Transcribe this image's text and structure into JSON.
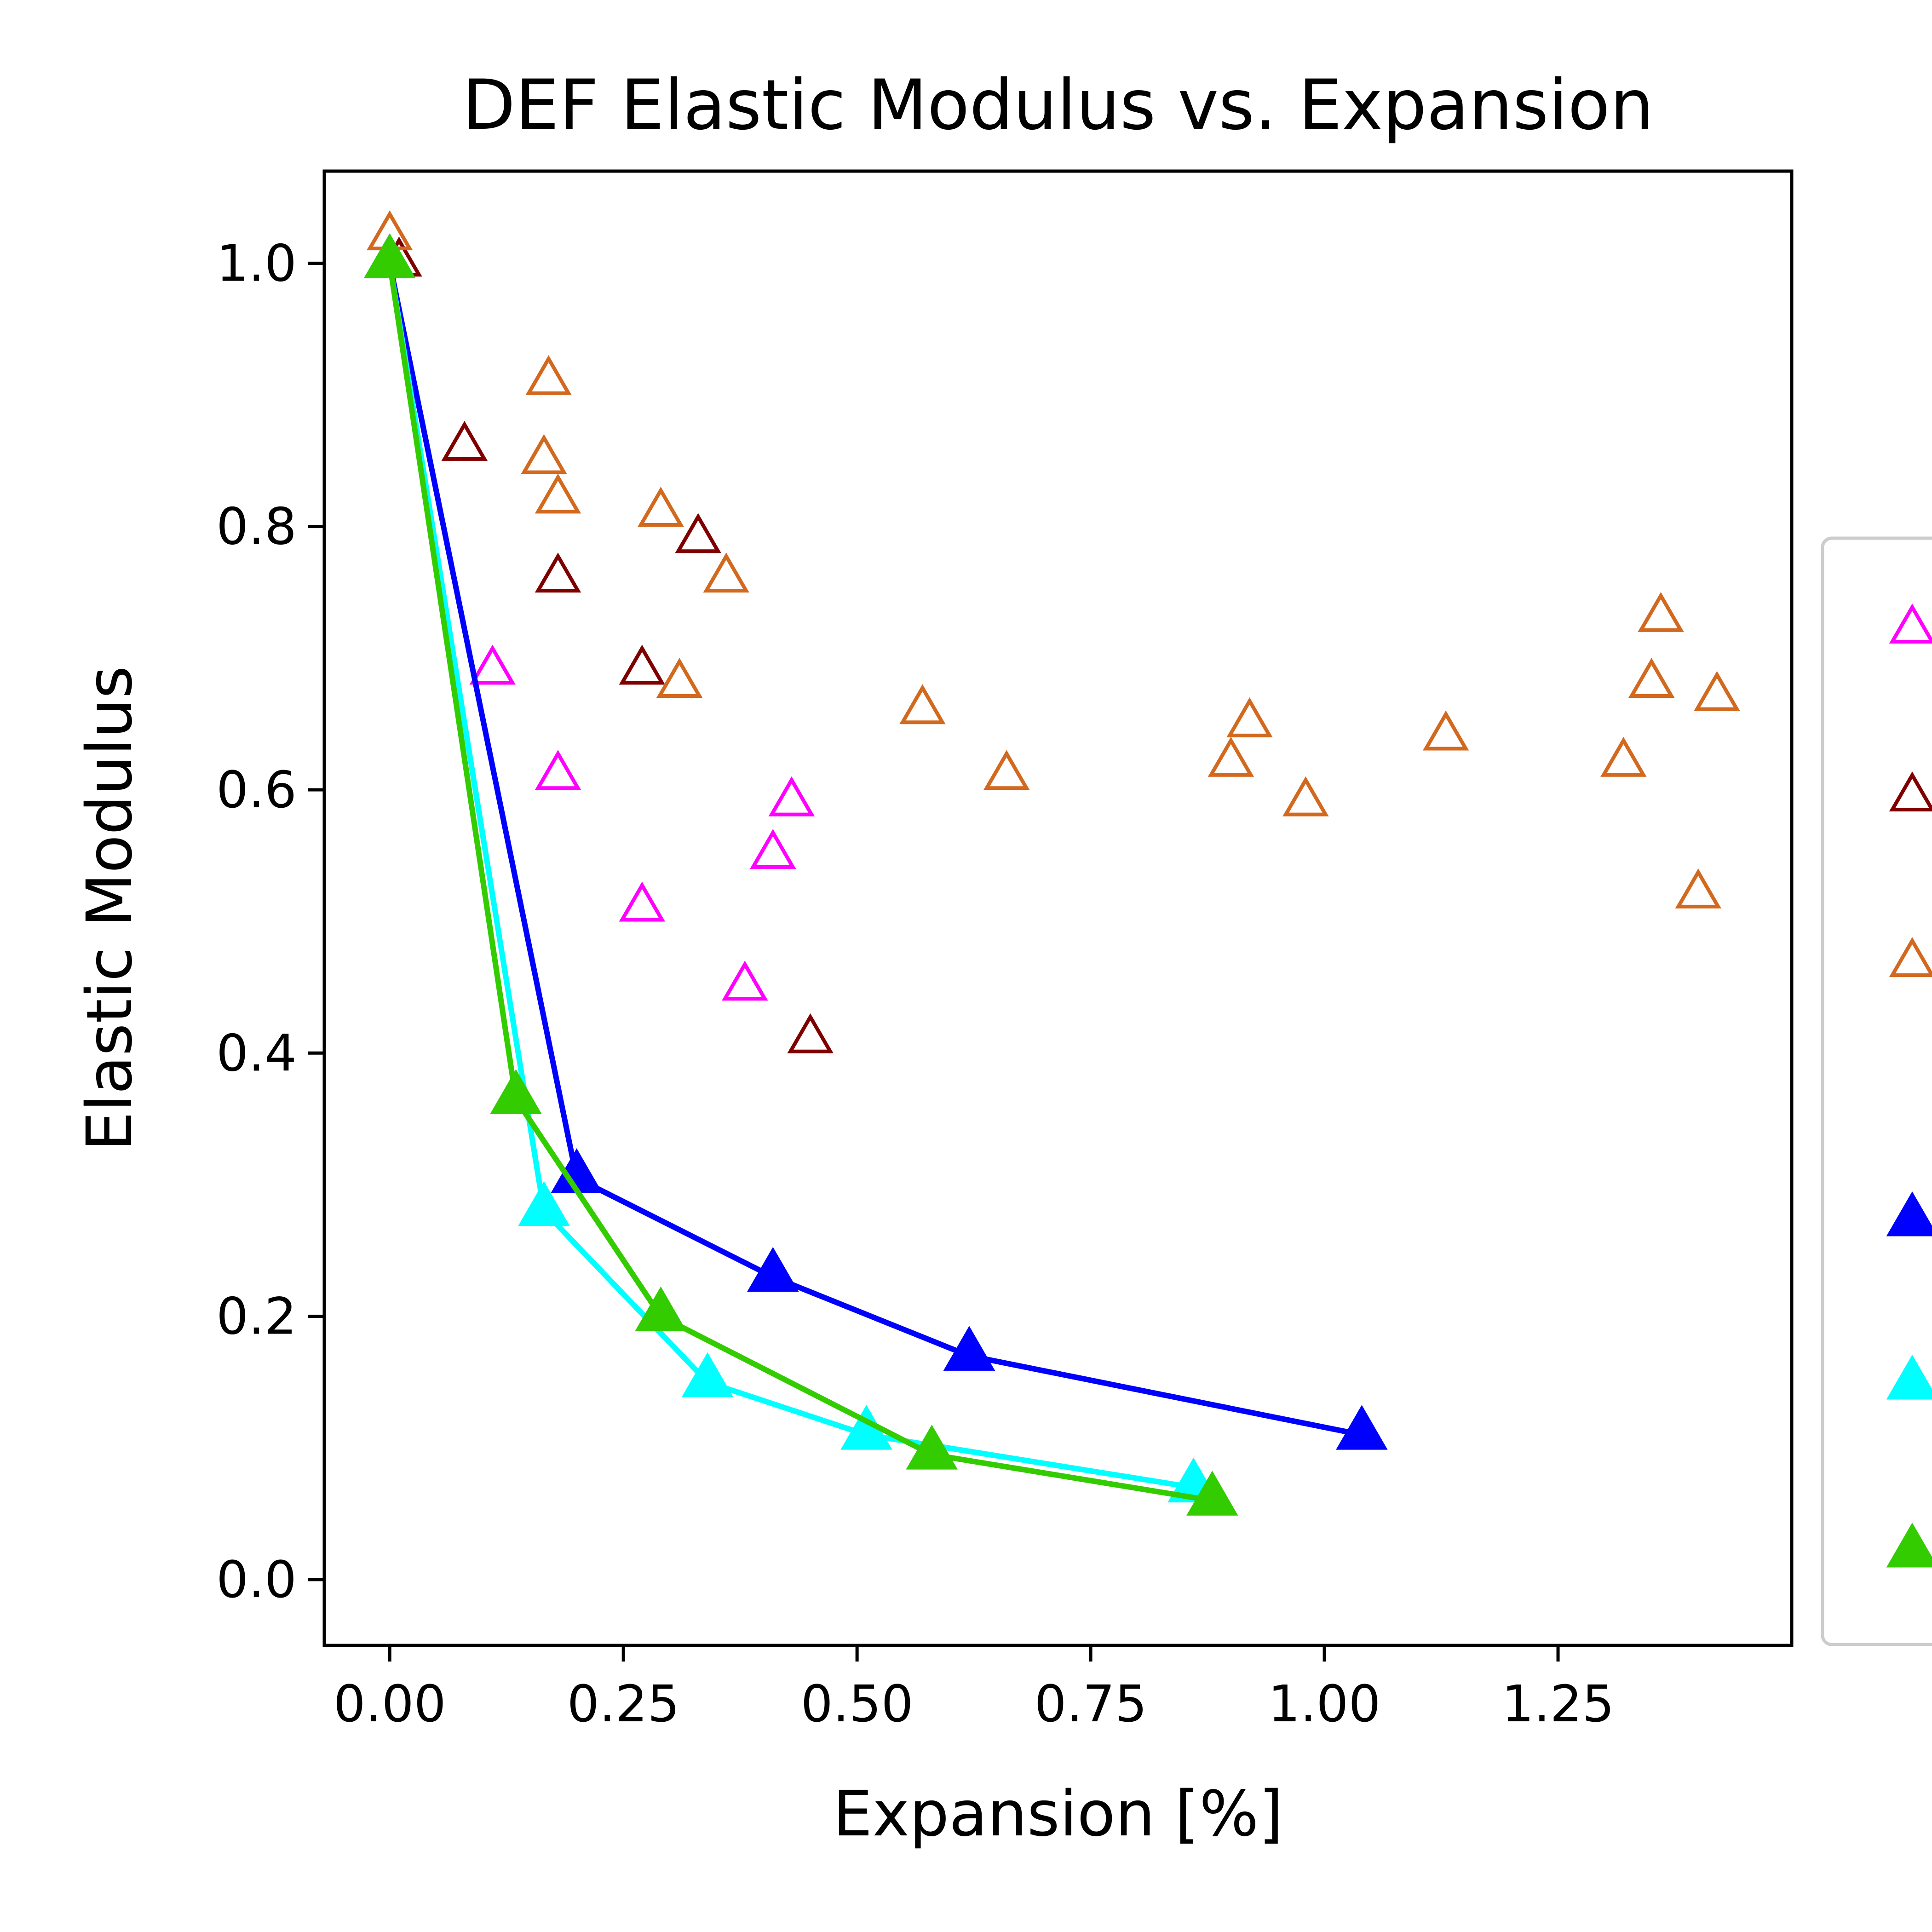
{
  "chart_data": {
    "type": "scatter",
    "title": "DEF Elastic Modulus vs. Expansion",
    "xlabel": "Expansion [%]",
    "ylabel": "Elastic Modulus",
    "xlim": [
      -0.07,
      1.5
    ],
    "ylim": [
      -0.05,
      1.07
    ],
    "x_ticks": [
      0.0,
      0.25,
      0.5,
      0.75,
      1.0,
      1.25
    ],
    "x_tick_labels": [
      "0.00",
      "0.25",
      "0.50",
      "0.75",
      "1.00",
      "1.25"
    ],
    "y_ticks": [
      0.0,
      0.2,
      0.4,
      0.6,
      0.8,
      1.0
    ],
    "y_tick_labels": [
      "0.0",
      "0.2",
      "0.4",
      "0.6",
      "0.8",
      "1.0"
    ],
    "grid": false,
    "legend": {
      "placement": "right, partially outside plot (labels cropped)"
    },
    "series": [
      {
        "marker": "open-triangle",
        "color": "#ff00ff",
        "connected": false,
        "points": [
          [
            0.0,
            1.0
          ],
          [
            0.11,
            0.69
          ],
          [
            0.18,
            0.61
          ],
          [
            0.27,
            0.51
          ],
          [
            0.38,
            0.45
          ],
          [
            0.41,
            0.55
          ],
          [
            0.43,
            0.59
          ]
        ]
      },
      {
        "marker": "open-triangle",
        "color": "#800000",
        "connected": false,
        "points": [
          [
            0.01,
            1.0
          ],
          [
            0.08,
            0.86
          ],
          [
            0.18,
            0.76
          ],
          [
            0.27,
            0.69
          ],
          [
            0.33,
            0.79
          ],
          [
            0.45,
            0.41
          ]
        ]
      },
      {
        "marker": "open-triangle",
        "color": "#d2691e",
        "connected": false,
        "points": [
          [
            0.0,
            1.02
          ],
          [
            0.17,
            0.91
          ],
          [
            0.165,
            0.85
          ],
          [
            0.18,
            0.82
          ],
          [
            0.29,
            0.81
          ],
          [
            0.36,
            0.76
          ],
          [
            0.31,
            0.68
          ],
          [
            0.57,
            0.66
          ],
          [
            0.66,
            0.61
          ],
          [
            0.9,
            0.62
          ],
          [
            0.92,
            0.65
          ],
          [
            0.98,
            0.59
          ],
          [
            1.13,
            0.64
          ],
          [
            1.32,
            0.62
          ],
          [
            1.35,
            0.68
          ],
          [
            1.36,
            0.73
          ],
          [
            1.42,
            0.67
          ],
          [
            1.4,
            0.52
          ]
        ]
      },
      {
        "marker": "filled-triangle",
        "color": "#0000ff",
        "connected": true,
        "points": [
          [
            0.0,
            1.0
          ],
          [
            0.2,
            0.305
          ],
          [
            0.41,
            0.23
          ],
          [
            0.62,
            0.17
          ],
          [
            1.04,
            0.11
          ]
        ]
      },
      {
        "marker": "filled-triangle",
        "color": "#00ffff",
        "connected": true,
        "points": [
          [
            0.0,
            1.0
          ],
          [
            0.165,
            0.28
          ],
          [
            0.34,
            0.15
          ],
          [
            0.51,
            0.11
          ],
          [
            0.86,
            0.07
          ]
        ]
      },
      {
        "marker": "filled-triangle",
        "color": "#33cc00",
        "connected": true,
        "points": [
          [
            0.0,
            1.0
          ],
          [
            0.135,
            0.365
          ],
          [
            0.29,
            0.2
          ],
          [
            0.58,
            0.095
          ],
          [
            0.88,
            0.06
          ]
        ]
      }
    ]
  }
}
